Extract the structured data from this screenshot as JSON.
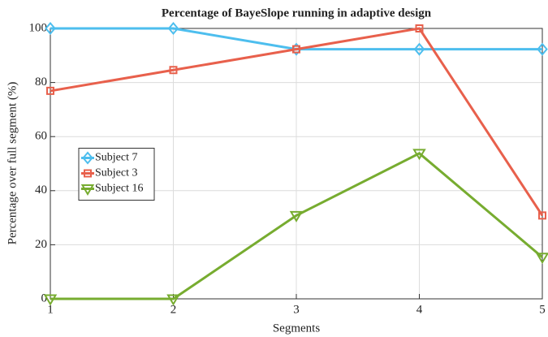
{
  "chart_data": {
    "type": "line",
    "title": "Percentage of BayeSlope running in adaptive design",
    "xlabel": "Segments",
    "ylabel": "Percentage over full segment (%)",
    "x": [
      1,
      2,
      3,
      4,
      5
    ],
    "series": [
      {
        "name": "Subject 7",
        "color": "#4dbeee",
        "marker": "diamond",
        "values": [
          100,
          100,
          92.3,
          92.3,
          92.3
        ]
      },
      {
        "name": "Subject 3",
        "color": "#e8604c",
        "marker": "square",
        "values": [
          76.9,
          84.6,
          92.3,
          100,
          30.8
        ]
      },
      {
        "name": "Subject 16",
        "color": "#77ac30",
        "marker": "triangle-down",
        "values": [
          0,
          0,
          30.8,
          53.8,
          15.4
        ]
      }
    ],
    "xlim": [
      1,
      5
    ],
    "xticks": [
      1,
      2,
      3,
      4,
      5
    ],
    "ylim": [
      0,
      100
    ],
    "yticks": [
      0,
      20,
      40,
      60,
      80,
      100
    ],
    "grid": true,
    "legend_location": "west"
  }
}
